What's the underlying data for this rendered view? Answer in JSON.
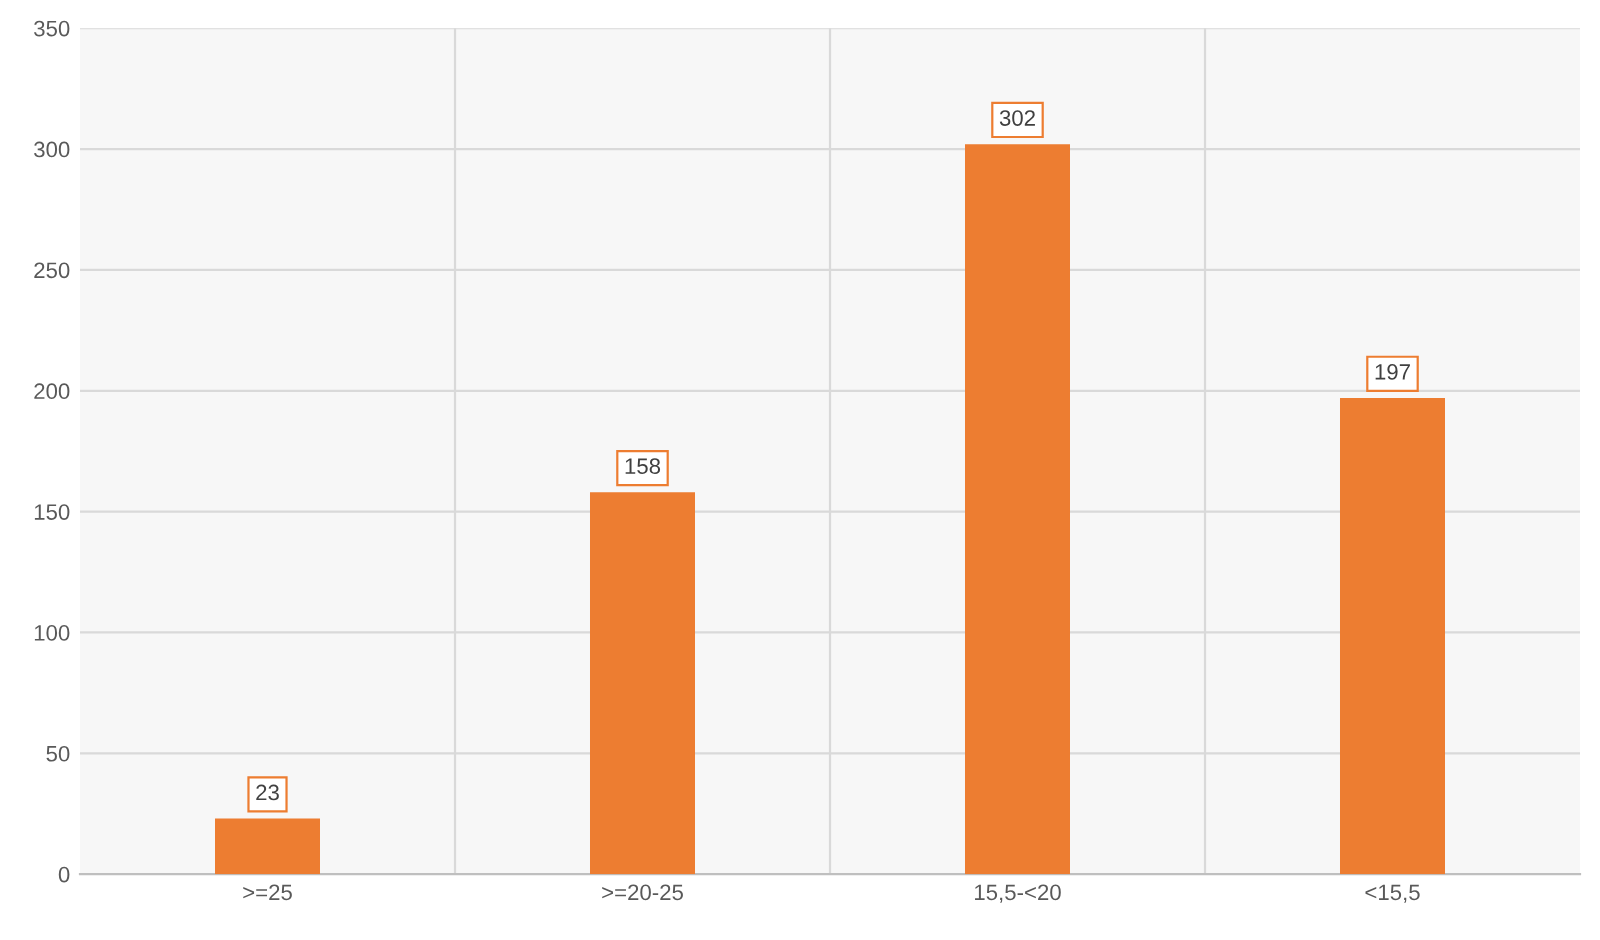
{
  "chart_data": {
    "type": "bar",
    "categories": [
      ">=25",
      ">=20-25",
      "15,5-<20",
      "<15,5"
    ],
    "values": [
      23,
      158,
      302,
      197
    ],
    "color": "#ed7d31",
    "ylim": [
      0,
      350
    ],
    "yticks": [
      0,
      50,
      100,
      150,
      200,
      250,
      300,
      350
    ],
    "grid": true,
    "data_labels": true
  }
}
